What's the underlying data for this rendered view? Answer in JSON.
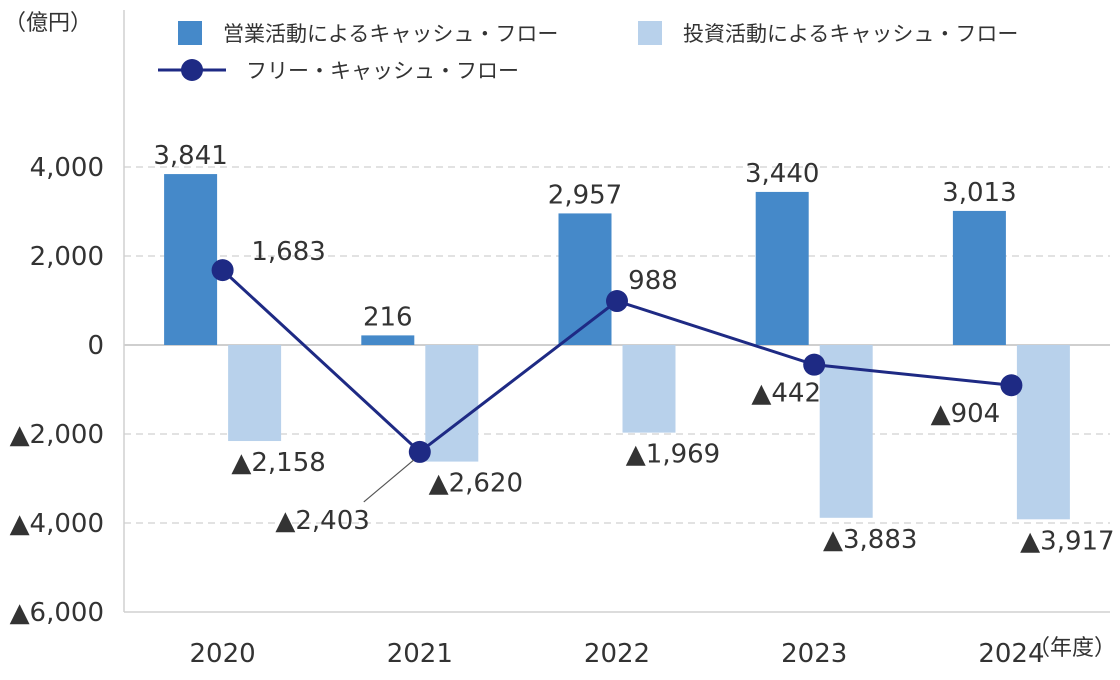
{
  "chart_data": {
    "type": "bar",
    "y_unit_label": "（億円）",
    "x_unit_label": "（年度）",
    "categories": [
      "2020",
      "2021",
      "2022",
      "2023",
      "2024"
    ],
    "ylim": [
      -6000,
      4000
    ],
    "yticks": [
      {
        "value": 4000,
        "label": "4,000"
      },
      {
        "value": 2000,
        "label": "2,000"
      },
      {
        "value": 0,
        "label": "0"
      },
      {
        "value": -2000,
        "label": "▲2,000"
      },
      {
        "value": -4000,
        "label": "▲4,000"
      },
      {
        "value": -6000,
        "label": "▲6,000"
      }
    ],
    "grid": true,
    "legend_position": "top",
    "series": [
      {
        "name": "営業活動によるキャッシュ・フロー",
        "kind": "bar",
        "color": "#4589c9",
        "values": [
          3841,
          216,
          2957,
          3440,
          3013
        ],
        "labels": [
          "3,841",
          "216",
          "2,957",
          "3,440",
          "3,013"
        ]
      },
      {
        "name": "投資活動によるキャッシュ・フロー",
        "kind": "bar",
        "color": "#b8d1eb",
        "values": [
          -2158,
          -2620,
          -1969,
          -3883,
          -3917
        ],
        "labels": [
          "▲2,158",
          "▲2,620",
          "▲1,969",
          "▲3,883",
          "▲3,917"
        ]
      },
      {
        "name": "フリー・キャッシュ・フロー",
        "kind": "line",
        "color": "#1e2a84",
        "values": [
          1683,
          -2403,
          988,
          -442,
          -904
        ],
        "labels": [
          "1,683",
          "▲2,403",
          "988",
          "▲442",
          "▲904"
        ]
      }
    ]
  }
}
